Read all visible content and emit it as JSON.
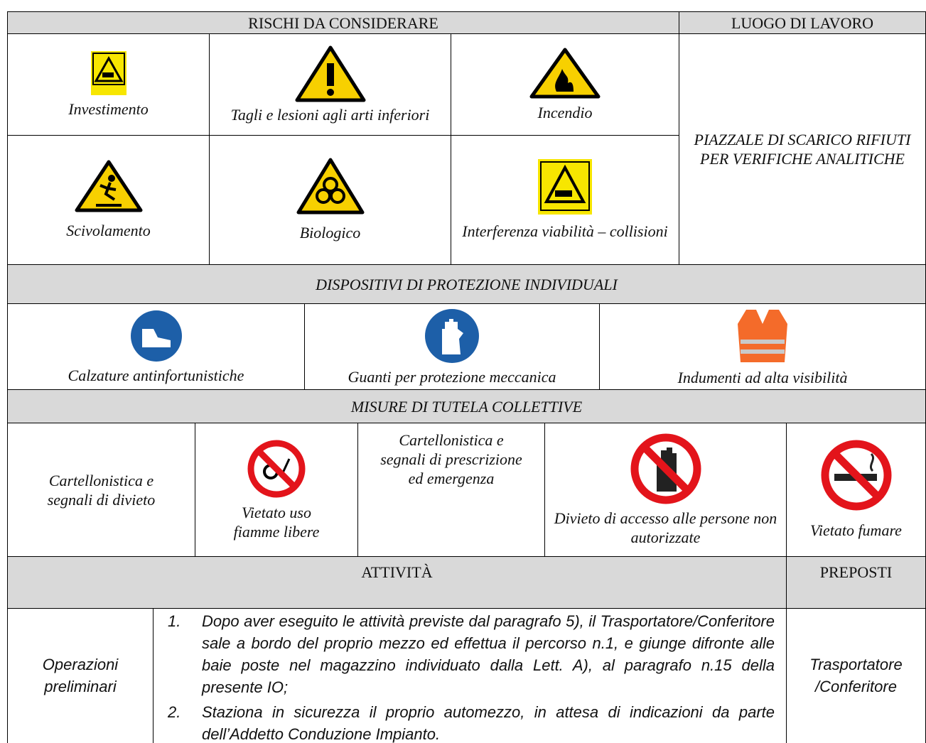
{
  "risks_header": "RISCHI DA CONSIDERARE",
  "workplace_header": "LUOGO DI LAVORO",
  "risks": [
    "Investimento",
    "Tagli e lesioni agli arti inferiori",
    "Incendio",
    "Scivolamento",
    "Biologico",
    "Interferenza viabilità – collisioni"
  ],
  "workplace": "PIAZZALE DI SCARICO RIFIUTI PER VERIFICHE ANALITICHE",
  "ppe_header": "DISPOSITIVI DI PROTEZIONE INDIVIDUALI",
  "ppe": [
    "Calzature antinfortunistiche",
    "Guanti per protezione meccanica",
    "Indumenti ad alta visibilità"
  ],
  "collective_header": "MISURE DI TUTELA COLLETTIVE",
  "collective": [
    "Cartellonistica e segnali di divieto",
    "Vietato uso fiamme libere",
    "Cartellonistica e segnali di prescrizione ed emergenza",
    "Divieto di accesso alle persone non autorizzate",
    "Vietato fumare"
  ],
  "activities_header": "ATTIVITÀ",
  "supervisors_header": "PREPOSTI",
  "activity": {
    "phase": "Operazioni preliminari",
    "steps": [
      {
        "number": "1.",
        "text": "Dopo aver eseguito le attività previste dal paragrafo 5), il Trasportatore/Conferitore sale a bordo del proprio mezzo ed effettua il percorso n.1, e giunge difronte alle baie poste nel magazzino individuato dalla Lett. A), al paragrafo n.15 della presente IO;"
      },
      {
        "number": "2.",
        "text": "Staziona in sicurezza il proprio automezzo, in attesa di indicazioni da parte dell’Addetto Conduzione Impianto."
      }
    ],
    "supervisor": "Trasportatore /Conferitore"
  }
}
